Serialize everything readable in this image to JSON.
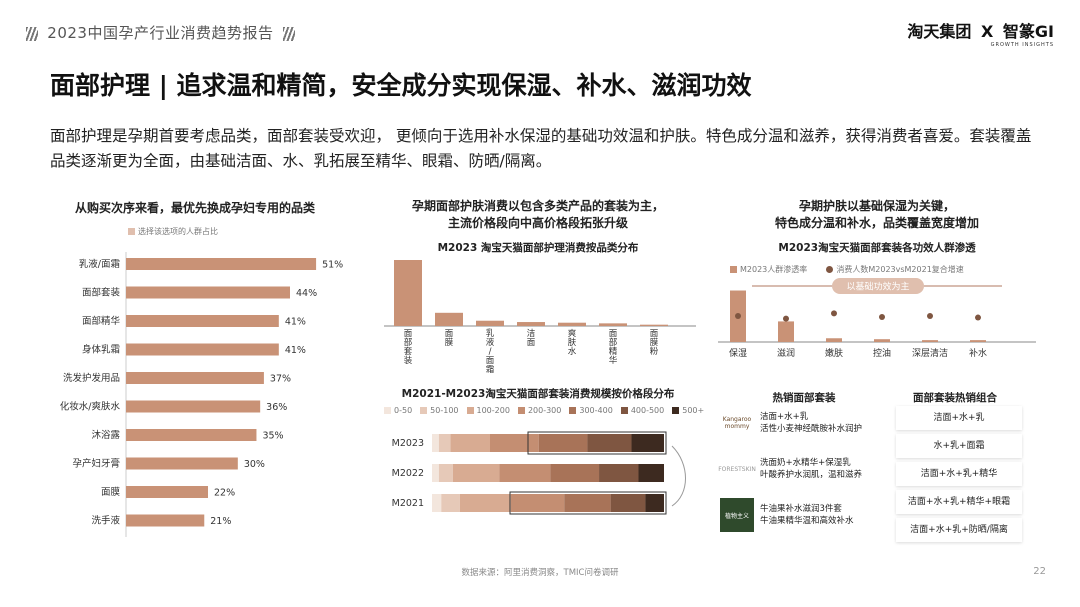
{
  "header": {
    "report_title": "2023中国孕产行业消费趋势报告",
    "brand_left": "淘天集团",
    "brand_x": "X",
    "brand_right": "智篆GI",
    "brand_sub": "GROWTH INSIGHTS"
  },
  "main_title": "面部护理 | 追求温和精简，安全成分实现保湿、补水、滋润功效",
  "intro_text": "面部护理是孕期首要考虑品类，面部套装受欢迎， 更倾向于选用补水保湿的基础功效温和护肤。特色成分温和滋养，获得消费者喜爱。套装覆盖品类逐渐更为全面，由基础洁面、水、乳拓展至精华、眼霜、防晒/隔离。",
  "left_panel": {
    "title": "从购买次序来看，最优先换成孕妇专用的品类"
  },
  "middle_panel": {
    "title_line1": "孕期面部护肤消费以包含多类产品的套装为主，",
    "title_line2": "主流价格段向中高价格段拓张升级"
  },
  "right_panel": {
    "title_line1": "孕期护肤以基础保湿为关键，",
    "title_line2": "特色成分温和补水，品类覆盖宽度增加",
    "hot_sets_title": "热销面部套装",
    "combos_title": "面部套装热销组合",
    "hot_sets": [
      {
        "logo": "Kangaroo mommy",
        "line1": "洁面+水+乳",
        "line2": "活性小麦神经酰胺补水润护"
      },
      {
        "logo": "FORESTSKIN",
        "line1": "洗面奶+水精华+保湿乳",
        "line2": "叶酸养护水润肌，温和滋养"
      },
      {
        "logo": "植物主义",
        "line1": "牛油果补水滋润3件套",
        "line2": "牛油果精华温和高效补水"
      }
    ],
    "combos": [
      "洁面+水+乳",
      "水+乳+面霜",
      "洁面+水+乳+精华",
      "洁面+水+乳+精华+眼霜",
      "洁面+水+乳+防晒/隔离"
    ]
  },
  "colors": {
    "bar": "#c99276",
    "bar_light": "#e0bfae",
    "accent": "#b07a60",
    "price_scale": [
      "#f3e6dd",
      "#e6c9b8",
      "#d8ab92",
      "#c48e72",
      "#a87358",
      "#7f5641",
      "#3d2a20"
    ]
  },
  "chart_data": [
    {
      "type": "bar",
      "orientation": "horizontal",
      "title": "从购买次序来看，最优先换成孕妇专用的品类",
      "legend": [
        "选择该选项的人群占比"
      ],
      "categories": [
        "乳液/面霜",
        "面部套装",
        "面部精华",
        "身体乳霜",
        "洗发护发用品",
        "化妆水/爽肤水",
        "沐浴露",
        "孕产妇牙膏",
        "面膜",
        "洗手液"
      ],
      "values": [
        51,
        44,
        41,
        41,
        37,
        36,
        35,
        30,
        22,
        21
      ],
      "labels": [
        "51%",
        "44%",
        "41%",
        "41%",
        "37%",
        "36%",
        "35%",
        "30%",
        "22%",
        "21%"
      ],
      "xlim": [
        0,
        55
      ]
    },
    {
      "type": "bar",
      "title": "M2023 淘宝天猫面部护理消费按品类分布",
      "categories": [
        "面部套装",
        "面膜",
        "乳液/面霜",
        "洁面",
        "爽肤水",
        "面部精华",
        "面膜粉"
      ],
      "values": [
        100,
        20,
        8,
        6,
        5,
        4,
        2
      ],
      "ylim": [
        0,
        100
      ]
    },
    {
      "type": "bar",
      "stacked": true,
      "orientation": "horizontal",
      "title": "M2021-M2023淘宝天猫面部套装消费规模按价格段分布",
      "categories": [
        "M2023",
        "M2022",
        "M2021"
      ],
      "series": [
        {
          "name": "0-50",
          "values": [
            3,
            3,
            4
          ]
        },
        {
          "name": "50-100",
          "values": [
            5,
            6,
            8
          ]
        },
        {
          "name": "100-200",
          "values": [
            17,
            20,
            22
          ]
        },
        {
          "name": "200-300",
          "values": [
            21,
            22,
            23
          ]
        },
        {
          "name": "300-400",
          "values": [
            21,
            21,
            20
          ]
        },
        {
          "name": "400-500",
          "values": [
            19,
            17,
            15
          ]
        },
        {
          "name": "500+",
          "values": [
            14,
            11,
            8
          ]
        }
      ],
      "xlim": [
        0,
        100
      ]
    },
    {
      "type": "bar",
      "title": "M2023淘宝天猫面部套装各功效人群渗透",
      "legend": [
        "M2023人群渗透率",
        "消费人数M2023vsM2021复合增速"
      ],
      "annotation": "以基础功效为主",
      "categories": [
        "保湿",
        "滋润",
        "嫩肤",
        "控油",
        "深层清洁",
        "补水"
      ],
      "series": [
        {
          "name": "M2023人群渗透率",
          "values": [
            55,
            22,
            4,
            3,
            2,
            2
          ]
        },
        {
          "name": "消费人数M2023vsM2021复合增速",
          "values": [
            50,
            45,
            55,
            48,
            50,
            47
          ]
        }
      ],
      "ylim": [
        0,
        100
      ]
    }
  ],
  "footer": {
    "source": "数据来源：阿里消费洞察，TMIC问卷调研",
    "page": "22"
  }
}
